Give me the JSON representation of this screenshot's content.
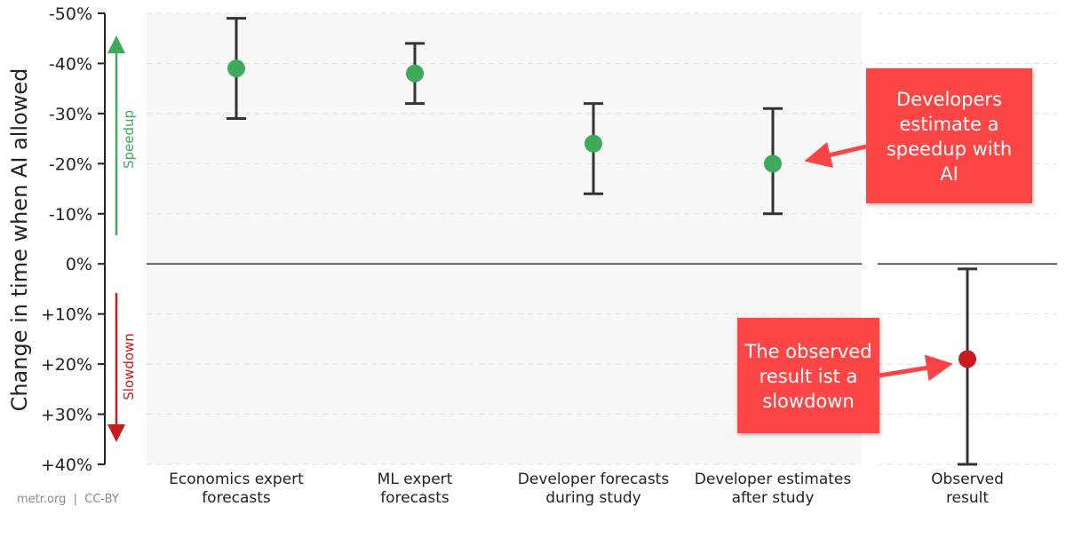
{
  "chart_data": {
    "type": "scatter",
    "title": "",
    "ylabel": "Change in time when AI allowed",
    "xlabel": "",
    "ylim": [
      -50,
      40
    ],
    "y_axis_inverted": true,
    "grid": true,
    "yticks": [
      -50,
      -40,
      -30,
      -20,
      -10,
      0,
      10,
      20,
      30,
      40
    ],
    "ytick_labels": [
      "-50%",
      "-40%",
      "-30%",
      "-20%",
      "-10%",
      "0%",
      "+10%",
      "+20%",
      "+30%",
      "+40%"
    ],
    "categories": [
      "Economics expert forecasts",
      "ML expert forecasts",
      "Developer forecasts during study",
      "Developer estimates after study",
      "Observed result"
    ],
    "category_lines": [
      [
        "Economics expert",
        "forecasts"
      ],
      [
        "ML expert",
        "forecasts"
      ],
      [
        "Developer forecasts",
        "during study"
      ],
      [
        "Developer estimates",
        "after study"
      ],
      [
        "Observed",
        "result"
      ]
    ],
    "values": [
      -39,
      -38,
      -24,
      -20,
      19
    ],
    "error_low": [
      -49,
      -44,
      -32,
      -31,
      1
    ],
    "error_high": [
      -29,
      -32,
      -14,
      -10,
      40
    ],
    "point_colors": [
      "#3daa5c",
      "#3daa5c",
      "#3daa5c",
      "#3daa5c",
      "#c8191e"
    ],
    "direction_labels": {
      "speedup": "Speedup",
      "slowdown": "Slowdown"
    },
    "direction_colors": {
      "speedup": "#3daa5c",
      "slowdown": "#c8191e"
    },
    "annotations": [
      {
        "text_lines": [
          "Developers",
          "estimate a",
          "speedup with",
          "AI"
        ],
        "points_to": "Developer estimates after study"
      },
      {
        "text_lines": [
          "The observed",
          "result ist a",
          "slowdown"
        ],
        "points_to": "Observed result"
      }
    ],
    "annotation_color": "#fc4444"
  },
  "footer": {
    "credit": "metr.org  |  CC-BY"
  }
}
